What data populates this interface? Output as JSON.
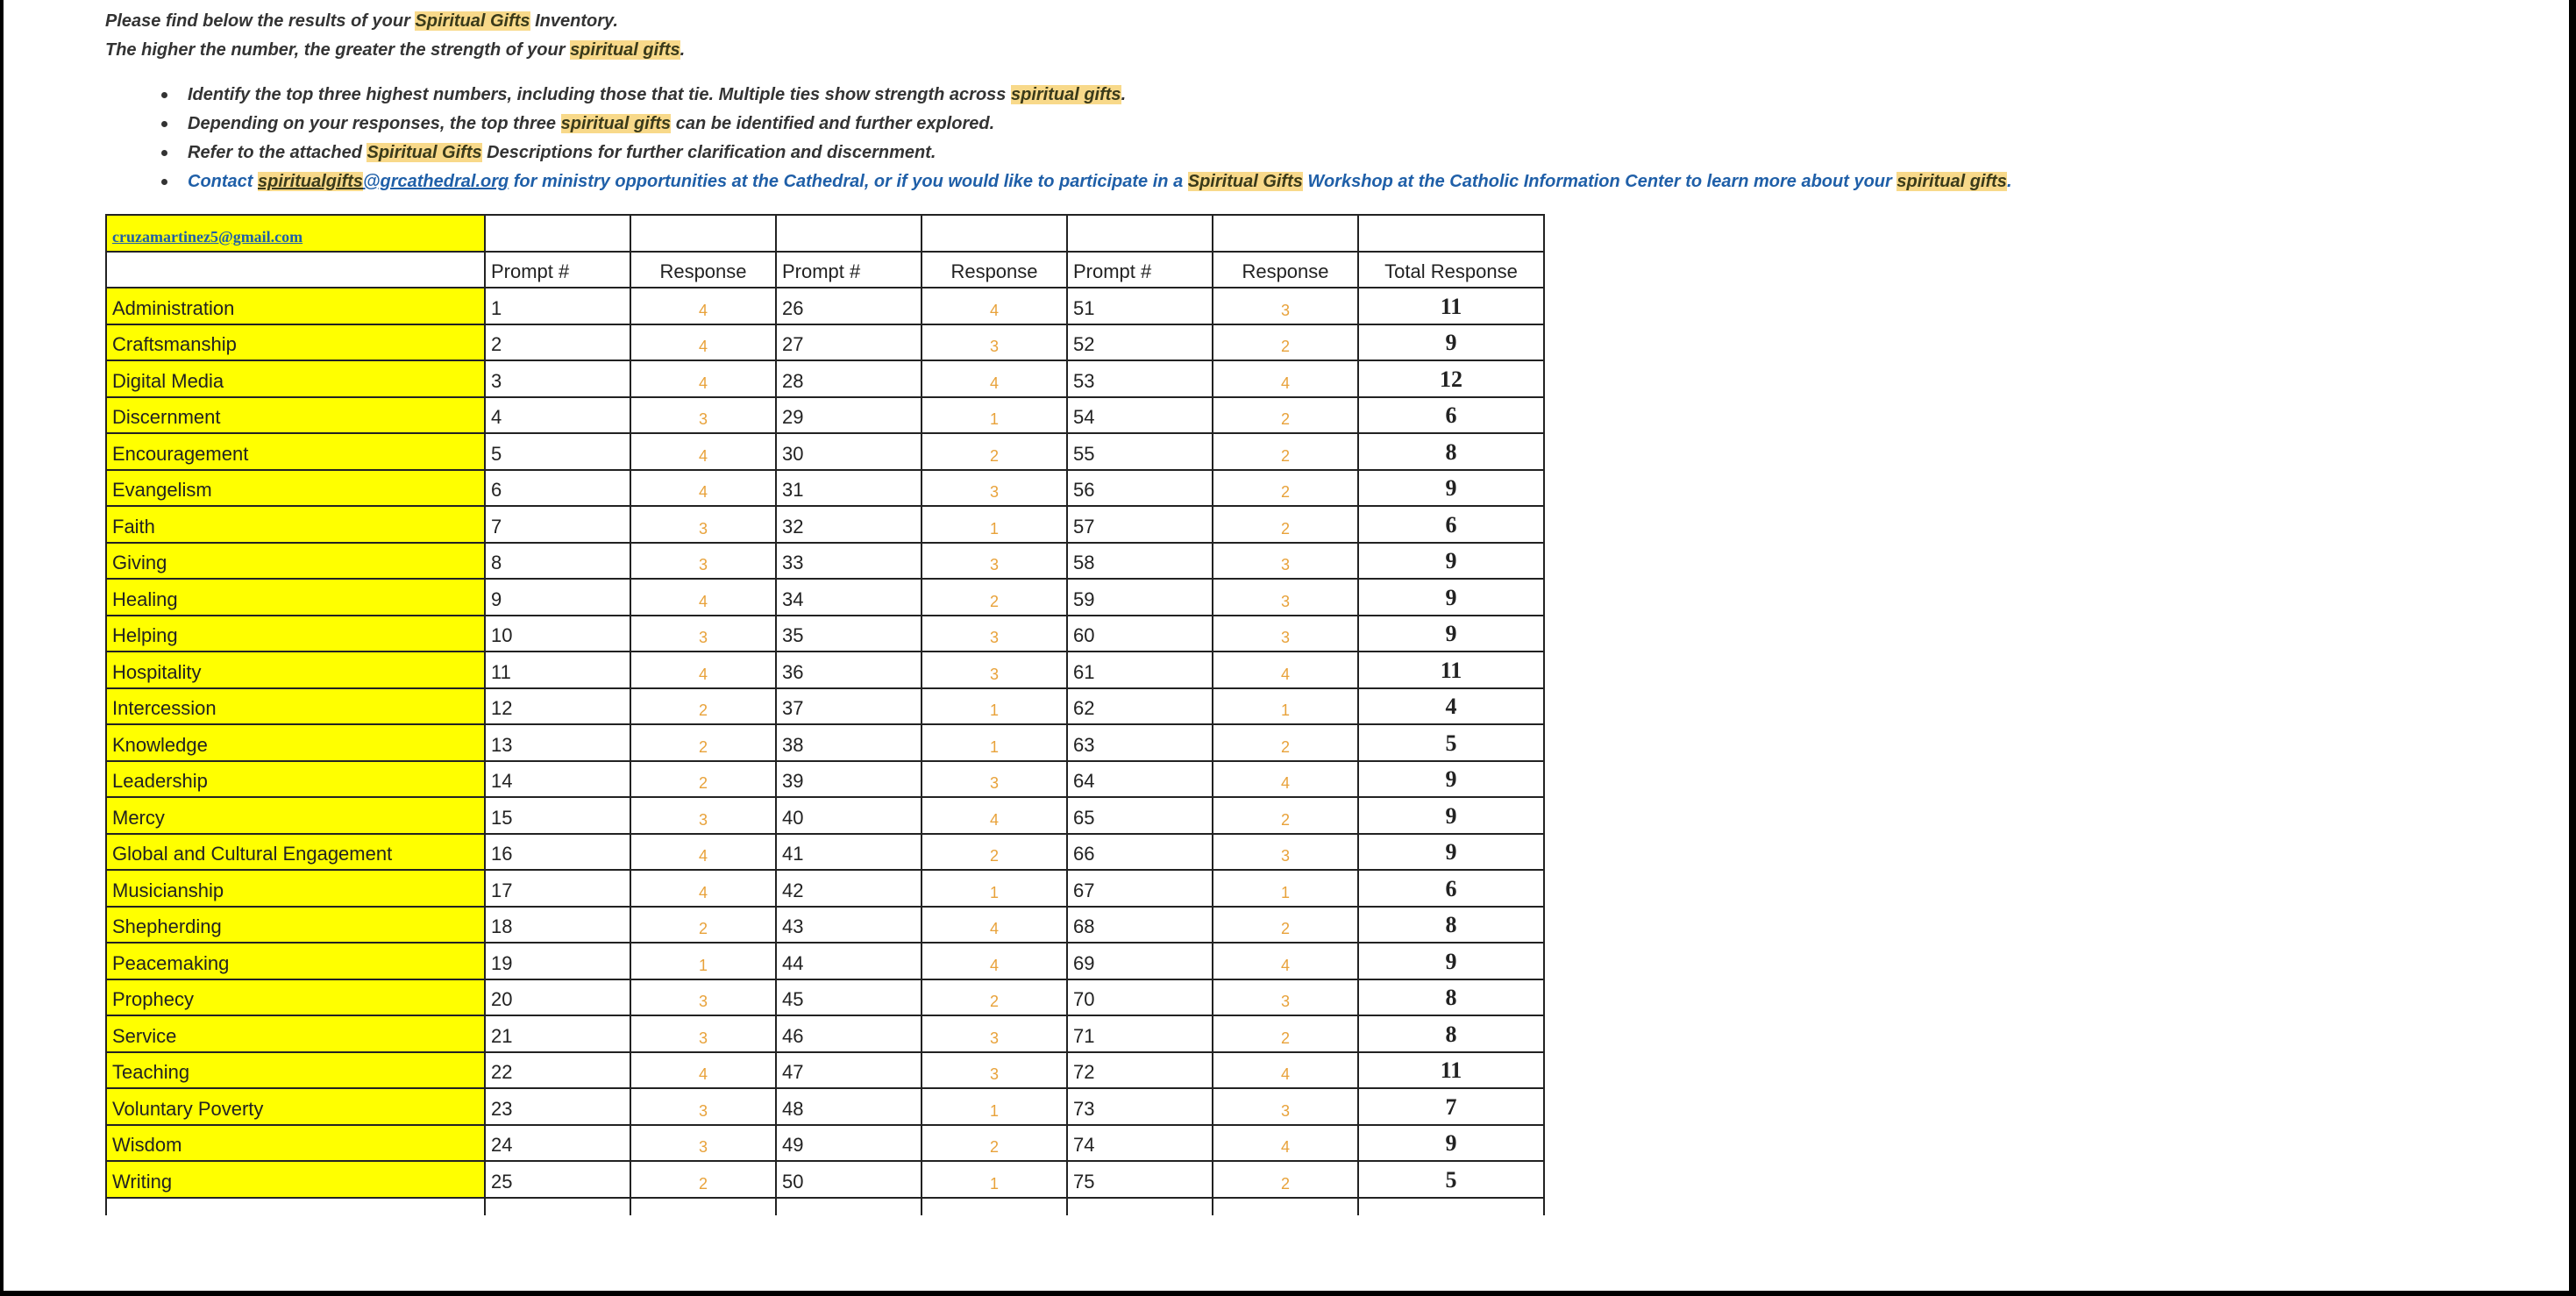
{
  "intro": {
    "line1_pre": "Please find below the results of your ",
    "line1_hl": "Spiritual Gifts",
    "line1_post": " Inventory.",
    "line2_pre": "The higher the number, the greater the strength of your ",
    "line2_hl": "spiritual gifts",
    "line2_post": "."
  },
  "bullets": {
    "b1_pre": "Identify the top three highest numbers, including those that tie. Multiple ties show strength across ",
    "b1_hl": "spiritual gifts",
    "b1_post": ".",
    "b2_pre": "Depending on your responses, the top three ",
    "b2_hl": "spiritual gifts",
    "b2_post": " can be identified and further explored.",
    "b3_pre": "Refer to the attached ",
    "b3_hl": "Spiritual Gifts",
    "b3_post": " Descriptions for further clarification and discernment.",
    "b4_pre": "Contact ",
    "b4_link_hl": "spiritualgifts",
    "b4_link_rest": "@grcathedral.org",
    "b4_mid": " for ministry opportunities at the Cathedral, or if you would like to participate in a ",
    "b4_hl": "Spiritual Gifts",
    "b4_mid2": " Workshop at the Catholic Information Center to learn more about your ",
    "b4_hl2": "spiritual gifts",
    "b4_post": "."
  },
  "table": {
    "email": "cruzamartinez5@gmail.com",
    "headers": [
      "Prompt #",
      "Response",
      "Prompt #",
      "Response",
      "Prompt #",
      "Response",
      "Total Response"
    ],
    "rows": [
      {
        "gift": "Administration",
        "p1": "1",
        "r1": "4",
        "p2": "26",
        "r2": "4",
        "p3": "51",
        "r3": "3",
        "total": "11"
      },
      {
        "gift": "Craftsmanship",
        "p1": "2",
        "r1": "4",
        "p2": "27",
        "r2": "3",
        "p3": "52",
        "r3": "2",
        "total": "9"
      },
      {
        "gift": "Digital Media",
        "p1": "3",
        "r1": "4",
        "p2": "28",
        "r2": "4",
        "p3": "53",
        "r3": "4",
        "total": "12"
      },
      {
        "gift": "Discernment",
        "p1": "4",
        "r1": "3",
        "p2": "29",
        "r2": "1",
        "p3": "54",
        "r3": "2",
        "total": "6"
      },
      {
        "gift": "Encouragement",
        "p1": "5",
        "r1": "4",
        "p2": "30",
        "r2": "2",
        "p3": "55",
        "r3": "2",
        "total": "8"
      },
      {
        "gift": "Evangelism",
        "p1": "6",
        "r1": "4",
        "p2": "31",
        "r2": "3",
        "p3": "56",
        "r3": "2",
        "total": "9"
      },
      {
        "gift": "Faith",
        "p1": "7",
        "r1": "3",
        "p2": "32",
        "r2": "1",
        "p3": "57",
        "r3": "2",
        "total": "6"
      },
      {
        "gift": "Giving",
        "p1": "8",
        "r1": "3",
        "p2": "33",
        "r2": "3",
        "p3": "58",
        "r3": "3",
        "total": "9"
      },
      {
        "gift": "Healing",
        "p1": "9",
        "r1": "4",
        "p2": "34",
        "r2": "2",
        "p3": "59",
        "r3": "3",
        "total": "9"
      },
      {
        "gift": "Helping",
        "p1": "10",
        "r1": "3",
        "p2": "35",
        "r2": "3",
        "p3": "60",
        "r3": "3",
        "total": "9"
      },
      {
        "gift": "Hospitality",
        "p1": "11",
        "r1": "4",
        "p2": "36",
        "r2": "3",
        "p3": "61",
        "r3": "4",
        "total": "11"
      },
      {
        "gift": "Intercession",
        "p1": "12",
        "r1": "2",
        "p2": "37",
        "r2": "1",
        "p3": "62",
        "r3": "1",
        "total": "4"
      },
      {
        "gift": "Knowledge",
        "p1": "13",
        "r1": "2",
        "p2": "38",
        "r2": "1",
        "p3": "63",
        "r3": "2",
        "total": "5"
      },
      {
        "gift": "Leadership",
        "p1": "14",
        "r1": "2",
        "p2": "39",
        "r2": "3",
        "p3": "64",
        "r3": "4",
        "total": "9"
      },
      {
        "gift": "Mercy",
        "p1": "15",
        "r1": "3",
        "p2": "40",
        "r2": "4",
        "p3": "65",
        "r3": "2",
        "total": "9"
      },
      {
        "gift": "Global and Cultural Engagement",
        "p1": "16",
        "r1": "4",
        "p2": "41",
        "r2": "2",
        "p3": "66",
        "r3": "3",
        "total": "9"
      },
      {
        "gift": "Musicianship",
        "p1": "17",
        "r1": "4",
        "p2": "42",
        "r2": "1",
        "p3": "67",
        "r3": "1",
        "total": "6"
      },
      {
        "gift": "Shepherding",
        "p1": "18",
        "r1": "2",
        "p2": "43",
        "r2": "4",
        "p3": "68",
        "r3": "2",
        "total": "8"
      },
      {
        "gift": "Peacemaking",
        "p1": "19",
        "r1": "1",
        "p2": "44",
        "r2": "4",
        "p3": "69",
        "r3": "4",
        "total": "9"
      },
      {
        "gift": "Prophecy",
        "p1": "20",
        "r1": "3",
        "p2": "45",
        "r2": "2",
        "p3": "70",
        "r3": "3",
        "total": "8"
      },
      {
        "gift": "Service",
        "p1": "21",
        "r1": "3",
        "p2": "46",
        "r2": "3",
        "p3": "71",
        "r3": "2",
        "total": "8"
      },
      {
        "gift": "Teaching",
        "p1": "22",
        "r1": "4",
        "p2": "47",
        "r2": "3",
        "p3": "72",
        "r3": "4",
        "total": "11"
      },
      {
        "gift": "Voluntary Poverty",
        "p1": "23",
        "r1": "3",
        "p2": "48",
        "r2": "1",
        "p3": "73",
        "r3": "3",
        "total": "7"
      },
      {
        "gift": "Wisdom",
        "p1": "24",
        "r1": "3",
        "p2": "49",
        "r2": "2",
        "p3": "74",
        "r3": "4",
        "total": "9"
      },
      {
        "gift": "Writing",
        "p1": "25",
        "r1": "2",
        "p2": "50",
        "r2": "1",
        "p3": "75",
        "r3": "2",
        "total": "5"
      }
    ]
  },
  "colors": {
    "gift_fill": "#ffff00",
    "highlight": "#f8d98a",
    "link": "#1f5fa8",
    "response_text": "#e8a23a"
  }
}
